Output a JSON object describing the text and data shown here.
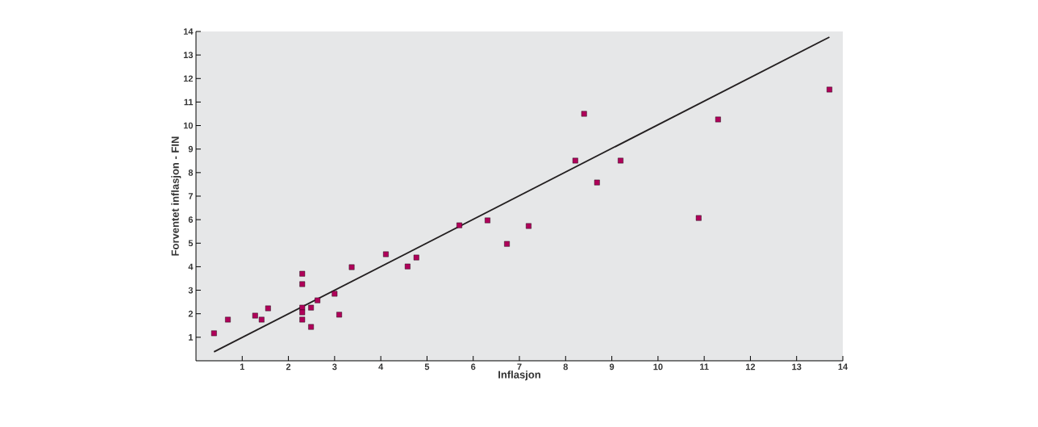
{
  "chart_data": {
    "type": "scatter",
    "xlabel": "Inflasjon",
    "ylabel": "Forventet inflasjon - FIN",
    "xlim": [
      0,
      14
    ],
    "ylim": [
      0,
      14
    ],
    "xticks": [
      1,
      2,
      3,
      4,
      5,
      6,
      7,
      8,
      9,
      10,
      11,
      12,
      13,
      14
    ],
    "yticks": [
      1,
      2,
      3,
      4,
      5,
      6,
      7,
      8,
      9,
      10,
      11,
      12,
      13,
      14
    ],
    "series": [
      {
        "color": "#b0005a",
        "marker": "square",
        "x": [
          0.39,
          0.69,
          1.28,
          1.42,
          1.56,
          2.3,
          2.3,
          2.3,
          2.3,
          2.3,
          2.49,
          2.49,
          2.63,
          3.0,
          3.1,
          3.37,
          4.11,
          4.58,
          4.77,
          5.7,
          6.31,
          6.73,
          7.2,
          8.21,
          8.4,
          8.68,
          9.19,
          10.88,
          11.3,
          13.71
        ],
        "values": [
          1.17,
          1.75,
          1.92,
          1.75,
          2.23,
          3.7,
          3.26,
          2.26,
          2.06,
          1.75,
          2.26,
          1.44,
          2.57,
          2.85,
          1.96,
          3.98,
          4.53,
          4.01,
          4.39,
          5.76,
          5.97,
          4.97,
          5.73,
          8.51,
          10.5,
          7.58,
          8.51,
          6.07,
          10.26,
          11.53
        ]
      },
      {
        "type": "line",
        "color": "#231f20",
        "marker": "none",
        "line_style": "solid",
        "x": [
          0.39,
          13.71
        ],
        "values": [
          0.38,
          13.76
        ]
      }
    ]
  }
}
